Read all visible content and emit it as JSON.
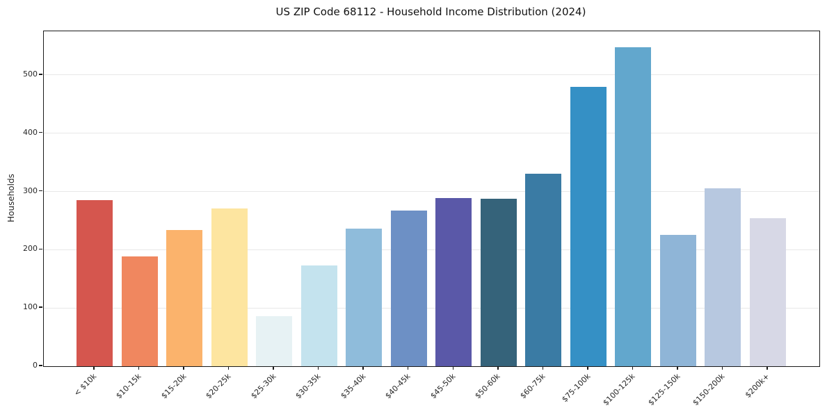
{
  "chart_data": {
    "type": "bar",
    "title": "US ZIP Code 68112 - Household Income Distribution (2024)",
    "xlabel": "",
    "ylabel": "Households",
    "categories": [
      "< $10k",
      "$10-15k",
      "$15-20k",
      "$20-25k",
      "$25-30k",
      "$30-35k",
      "$35-40k",
      "$40-45k",
      "$45-50k",
      "$50-60k",
      "$60-75k",
      "$75-100k",
      "$100-125k",
      "$125-150k",
      "$150-200k",
      "$200k+"
    ],
    "values": [
      285,
      189,
      234,
      271,
      86,
      173,
      236,
      267,
      289,
      288,
      331,
      479,
      547,
      225,
      306,
      254
    ],
    "bar_colors": [
      "#d5564e",
      "#f0875f",
      "#fbb36c",
      "#fde5a0",
      "#e7f2f4",
      "#c4e3ee",
      "#8fbcdb",
      "#6d90c5",
      "#5a58a8",
      "#35637a",
      "#3a7ba4",
      "#3590c5",
      "#62a7cd",
      "#8fb5d7",
      "#b7c8e0",
      "#d7d8e6"
    ],
    "yticks": [
      0,
      100,
      200,
      300,
      400,
      500
    ],
    "ylim": [
      0,
      575
    ],
    "grid": "horizontal",
    "legend": "none",
    "tick_rotation_deg": 45,
    "colors": {
      "background": "#ffffff",
      "grid": "#e8e8e8",
      "spine": "#1a1a1a",
      "text": "#262626"
    }
  }
}
